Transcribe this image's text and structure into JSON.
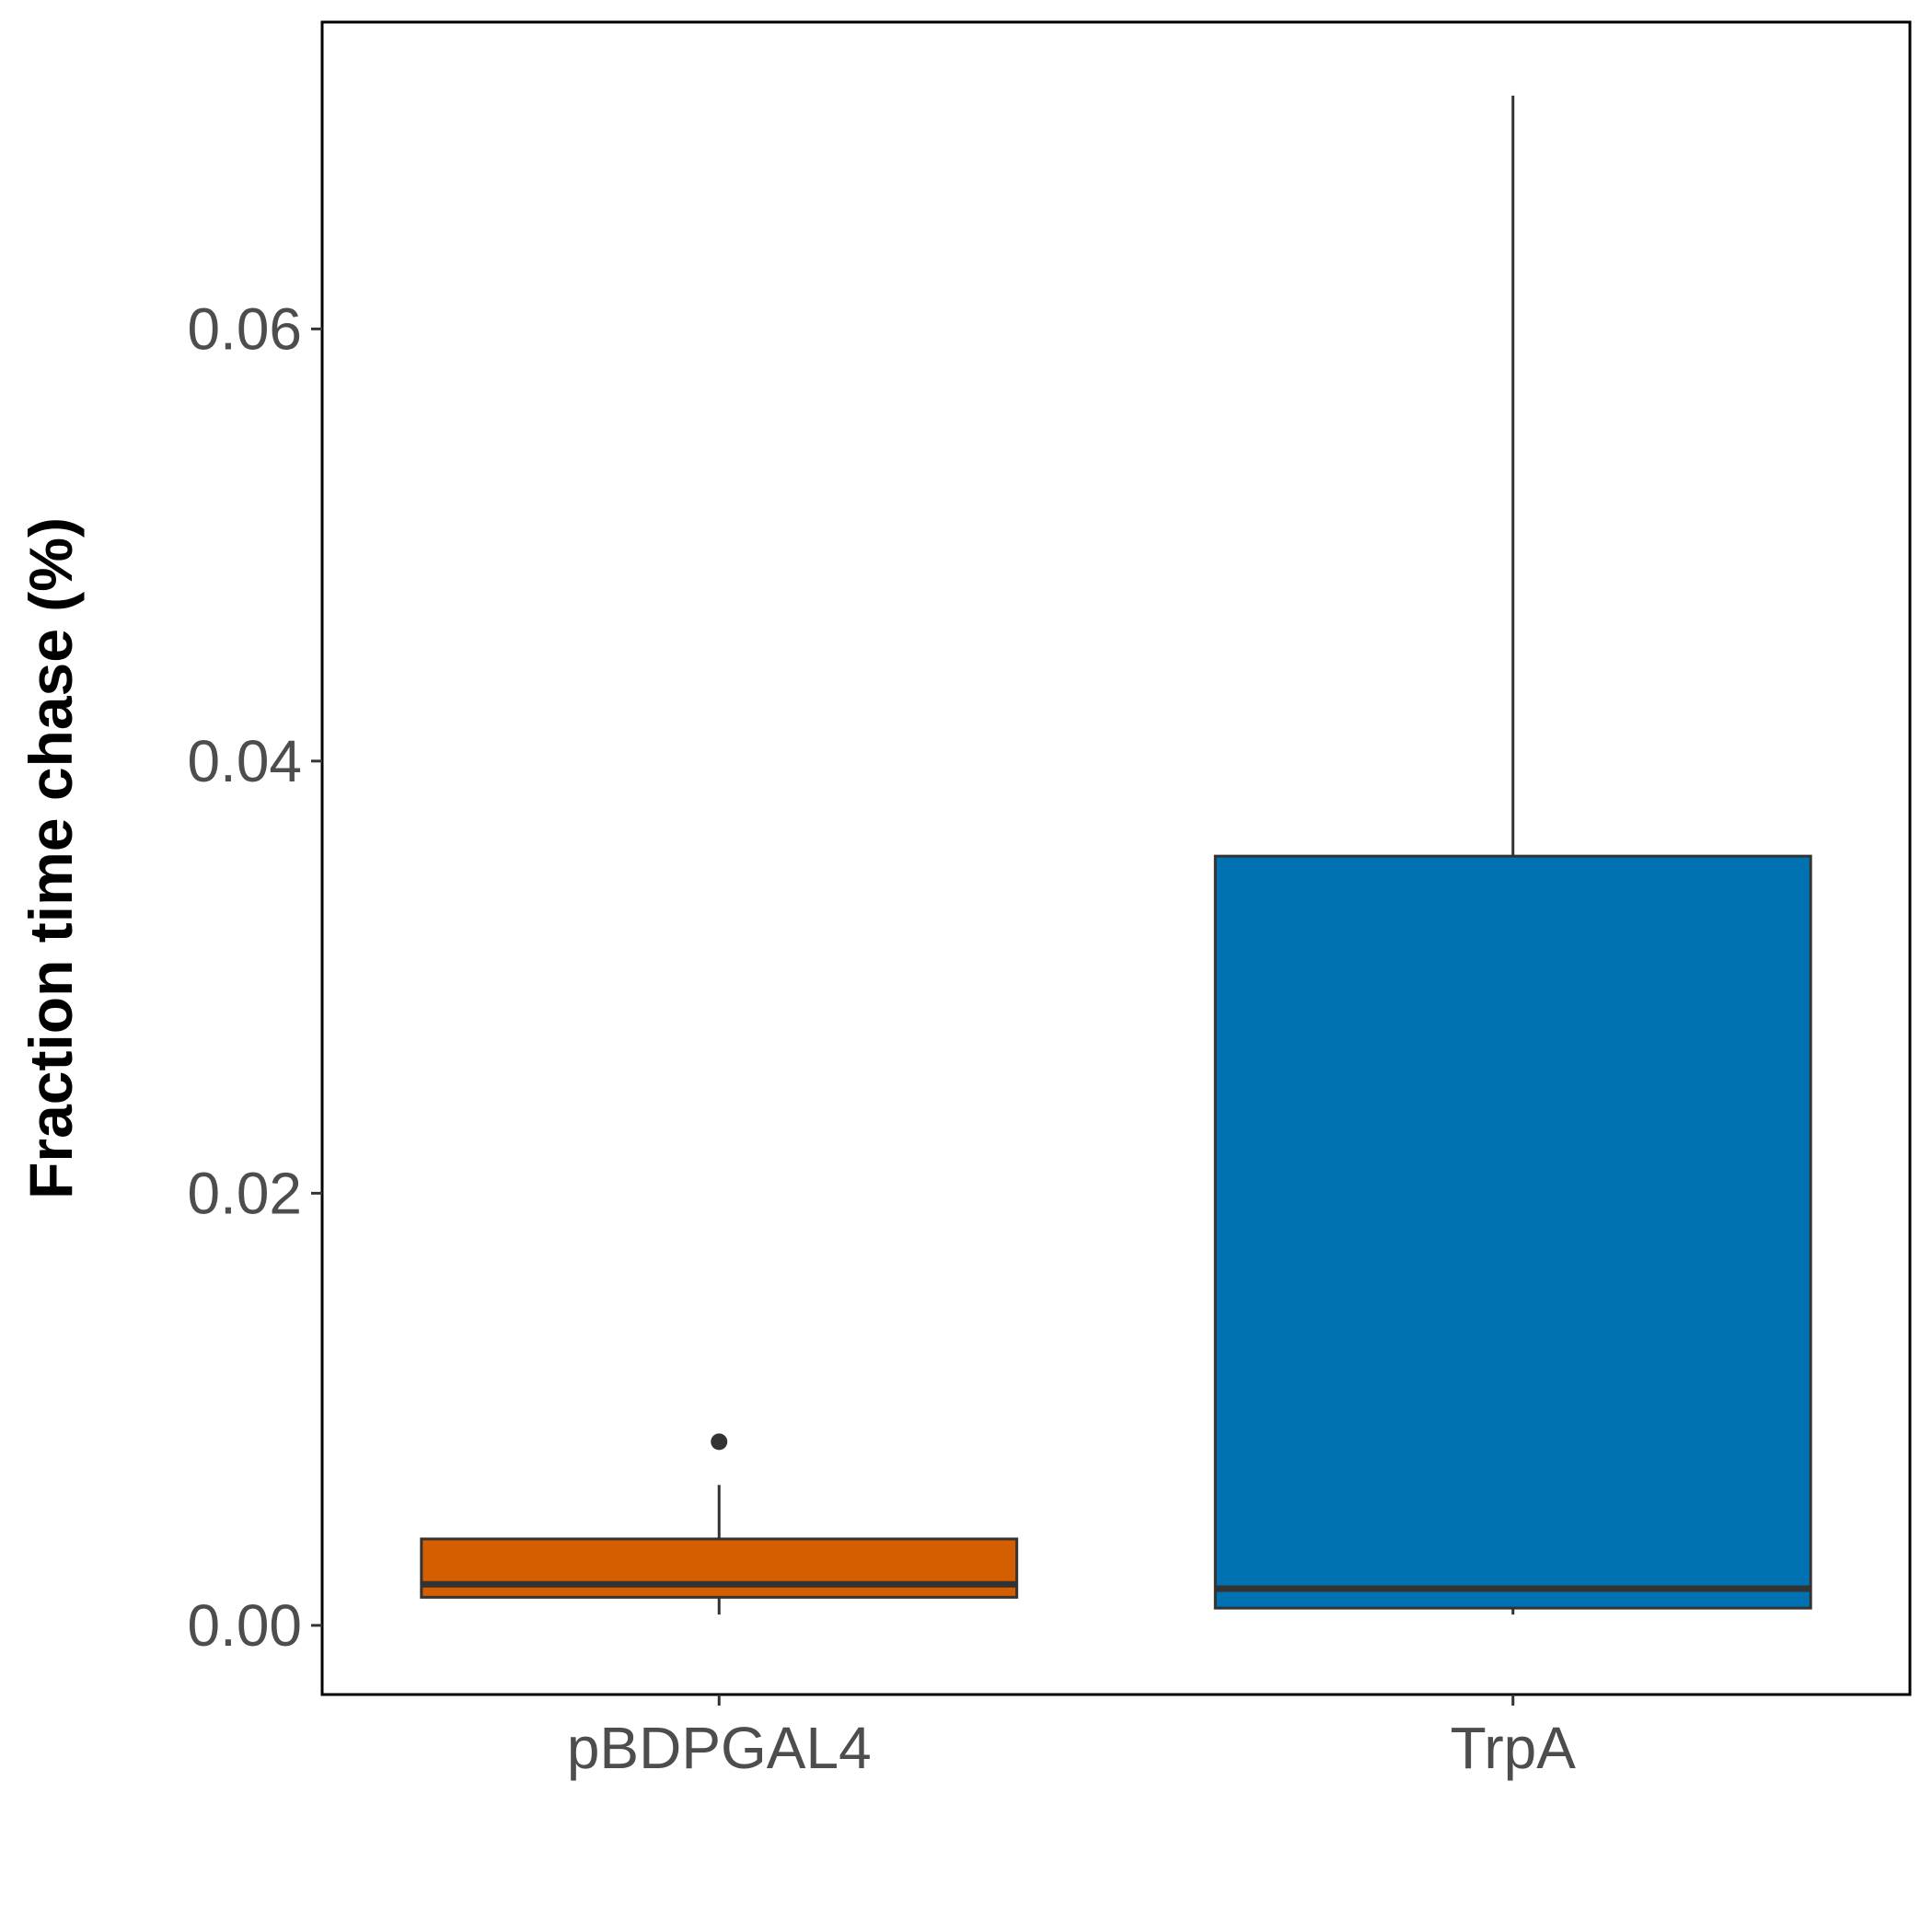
{
  "chart_data": {
    "type": "box",
    "title": "",
    "xlabel": "",
    "ylabel": "Fraction time chase (%)",
    "ylim": [
      -0.0032,
      0.0742
    ],
    "y_ticks": [
      {
        "value": 0.0,
        "label": "0.00"
      },
      {
        "value": 0.02,
        "label": "0.02"
      },
      {
        "value": 0.04,
        "label": "0.04"
      },
      {
        "value": 0.06,
        "label": "0.06"
      }
    ],
    "categories": [
      "pBDPGAL4",
      "TrpA"
    ],
    "boxes": [
      {
        "category": "pBDPGAL4",
        "color": "#D55E00",
        "whisker_low": 0.0005,
        "q1": 0.0013,
        "median": 0.0019,
        "q3": 0.004,
        "whisker_high": 0.0065,
        "outliers": [
          0.0085
        ]
      },
      {
        "category": "TrpA",
        "color": "#0072B2",
        "whisker_low": 0.0005,
        "q1": 0.0008,
        "median": 0.0017,
        "q3": 0.0356,
        "whisker_high": 0.0708,
        "outliers": []
      }
    ],
    "grid": false,
    "legend": "none",
    "frame_color": "#000000",
    "box_outline_color": "#333333"
  }
}
